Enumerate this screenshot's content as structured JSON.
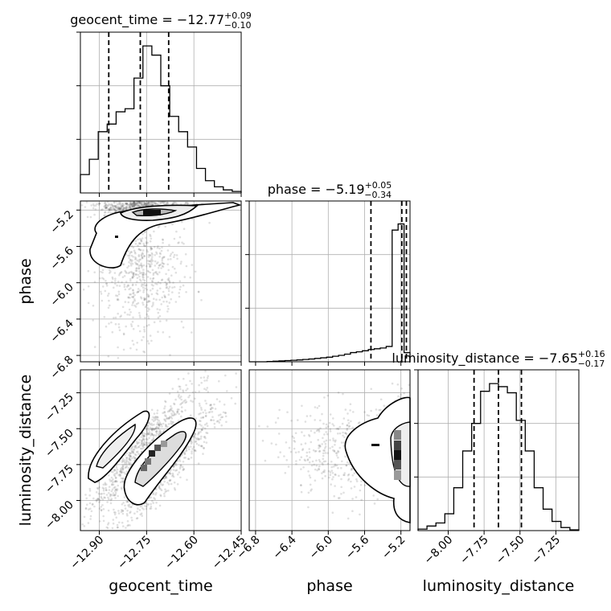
{
  "chart_data": {
    "type": "corner",
    "parameters": [
      "geocent_time",
      "phase",
      "luminosity_distance"
    ],
    "titles": [
      {
        "prefix": "geocent_time = ",
        "value": "−12.77",
        "plus": "+0.09",
        "minus": "−0.10"
      },
      {
        "prefix": "phase = ",
        "value": "−5.19",
        "plus": "+0.05",
        "minus": "−0.34"
      },
      {
        "prefix": "luminosity_distance = ",
        "value": "−7.65",
        "plus": "+0.16",
        "minus": "−0.17"
      }
    ],
    "ranges": {
      "geocent_time": [
        -12.96,
        -12.45
      ],
      "phase": [
        -6.87,
        -5.1
      ],
      "luminosity_distance": [
        -8.21,
        -7.09
      ]
    },
    "ticks": {
      "geocent_time": [
        {
          "v": -12.9,
          "label": "−12.90"
        },
        {
          "v": -12.75,
          "label": "−12.75"
        },
        {
          "v": -12.6,
          "label": "−12.60"
        },
        {
          "v": -12.45,
          "label": "−12.45"
        }
      ],
      "phase": [
        {
          "v": -6.8,
          "label": "−6.8"
        },
        {
          "v": -6.4,
          "label": "−6.4"
        },
        {
          "v": -6.0,
          "label": "−6.0"
        },
        {
          "v": -5.6,
          "label": "−5.6"
        },
        {
          "v": -5.2,
          "label": "−5.2"
        }
      ],
      "luminosity_distance": [
        {
          "v": -8.0,
          "label": "−8.00"
        },
        {
          "v": -7.75,
          "label": "−7.75"
        },
        {
          "v": -7.5,
          "label": "−7.50"
        },
        {
          "v": -7.25,
          "label": "−7.25"
        }
      ]
    },
    "quantiles": {
      "geocent_time": [
        -12.87,
        -12.77,
        -12.68
      ],
      "phase": [
        -5.53,
        -5.19,
        -5.14
      ],
      "luminosity_distance": [
        -7.82,
        -7.65,
        -7.49
      ]
    },
    "histograms": {
      "geocent_time": [
        0.12,
        0.22,
        0.4,
        0.45,
        0.53,
        0.55,
        0.75,
        0.96,
        0.9,
        0.7,
        0.5,
        0.4,
        0.3,
        0.16,
        0.08,
        0.04,
        0.02,
        0.01
      ],
      "phase": [
        0.0,
        0.0,
        0.0,
        0.002,
        0.004,
        0.006,
        0.008,
        0.01,
        0.012,
        0.015,
        0.018,
        0.022,
        0.026,
        0.03,
        0.036,
        0.042,
        0.05,
        0.06,
        0.065,
        0.072,
        0.08,
        0.085,
        0.09,
        0.1,
        0.86,
        0.9,
        0.06
      ],
      "luminosity_distance": [
        0.01,
        0.03,
        0.05,
        0.11,
        0.28,
        0.52,
        0.7,
        0.91,
        0.96,
        0.94,
        0.9,
        0.72,
        0.52,
        0.28,
        0.14,
        0.06,
        0.02,
        0.005
      ]
    },
    "grid": true
  }
}
